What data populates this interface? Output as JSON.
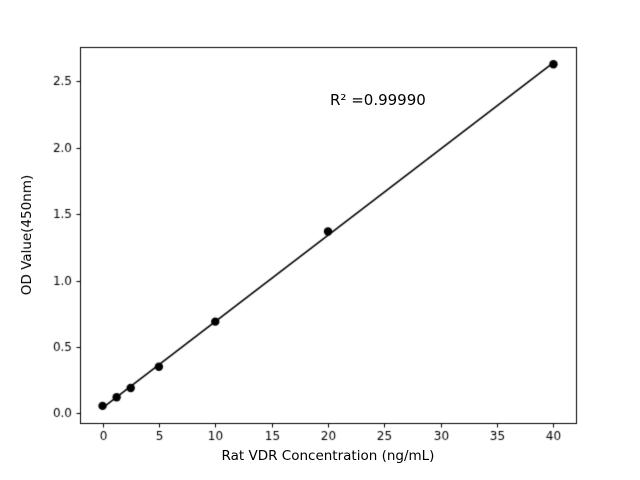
{
  "chart_data": {
    "type": "scatter",
    "title": "",
    "xlabel": "Rat VDR Concentration (ng/mL)",
    "ylabel": "OD Value(450nm)",
    "annotation": "R² =0.99990",
    "x": [
      0,
      1.25,
      2.5,
      5,
      10,
      20,
      40
    ],
    "y": [
      0.055,
      0.12,
      0.19,
      0.35,
      0.69,
      1.37,
      2.63
    ],
    "fit": "linear",
    "xlim": [
      -2,
      42
    ],
    "ylim": [
      -0.074,
      2.76
    ],
    "xticks": [
      0,
      5,
      10,
      15,
      20,
      25,
      30,
      35,
      40
    ],
    "xtick_labels": [
      "0",
      "5",
      "10",
      "15",
      "20",
      "25",
      "30",
      "35",
      "40"
    ],
    "yticks": [
      0,
      0.5,
      1.0,
      1.5,
      2.0,
      2.5
    ],
    "ytick_labels": [
      "0.0",
      "0.5",
      "1.0",
      "1.5",
      "2.0",
      "2.5"
    ],
    "grid": false,
    "legend": "none",
    "marker_color": "#000000",
    "line_color": "#000000",
    "background_color": "#ffffff"
  }
}
